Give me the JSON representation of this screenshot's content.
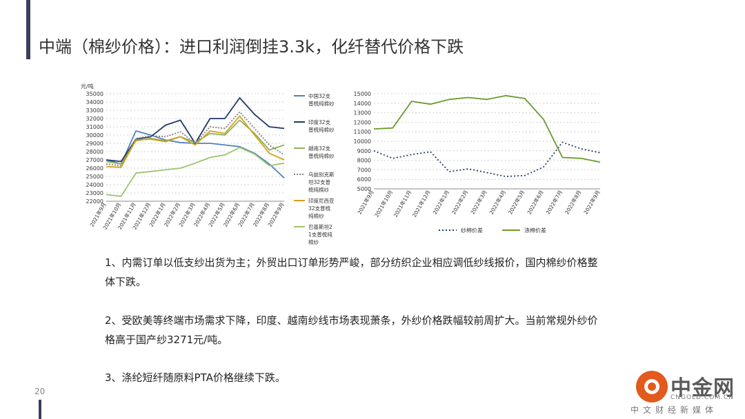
{
  "title": "中端（棉纱价格）：进口利润倒挂3.3k，化纤替代价格下跌",
  "page_number": "20",
  "paragraphs": [
    "1、内需订单以低支纱出货为主；外贸出口订单形势严峻，部分纺织企业相应调低纱线报价，国内棉纱价格整体下跌。",
    "2、受欧美等终端市场需求下降，印度、越南纱线市场表现萧条，外纱价格跌幅较前周扩大。当前常规外纱价格高于国产纱3271元/吨。",
    "3、涤纶短纤随原料PTA价格继续下跌。"
  ],
  "watermark": {
    "brand": "中金网",
    "domain": "CNGOLD.COM.CN",
    "tagline": "中文财经新媒体"
  },
  "chart_data": [
    {
      "type": "line",
      "ylabel": "元/吨",
      "ylim": [
        22000,
        35000
      ],
      "yticks": [
        22000,
        23000,
        24000,
        25000,
        26000,
        27000,
        28000,
        29000,
        30000,
        31000,
        32000,
        33000,
        34000,
        35000
      ],
      "categories": [
        "2021年9月",
        "2021年10月",
        "2021年11月",
        "2021年12月",
        "2022年1月",
        "2022年2月",
        "2022年3月",
        "2022年4月",
        "2022年5月",
        "2022年6月",
        "2022年7月",
        "2022年8月",
        "2022年9月"
      ],
      "grid": true,
      "legend_position": "right",
      "series": [
        {
          "name": "中国32支普梳纯棉纱",
          "color": "#4f81bd",
          "dash": "",
          "values": [
            27000,
            26500,
            30500,
            30000,
            29400,
            29100,
            29000,
            29000,
            28800,
            28600,
            27800,
            26500,
            24800
          ]
        },
        {
          "name": "印度32支普梳纯棉纱",
          "color": "#1f3864",
          "dash": "",
          "values": [
            27000,
            26800,
            29500,
            29800,
            31200,
            31800,
            29000,
            32000,
            32000,
            34500,
            32500,
            31000,
            30800
          ]
        },
        {
          "name": "越南32支普梳纯棉纱",
          "color": "#8db05a",
          "dash": "",
          "values": [
            26800,
            26500,
            29300,
            29600,
            29300,
            29800,
            29100,
            30200,
            30000,
            31800,
            30200,
            28200,
            28800
          ]
        },
        {
          "name": "乌兹别克斯坦32支普梳纯棉纱",
          "color": "#7f7f7f",
          "dash": "2,2",
          "values": [
            26500,
            26300,
            29600,
            29900,
            29800,
            30400,
            29000,
            31000,
            30800,
            32800,
            30800,
            28800,
            27600
          ]
        },
        {
          "name": "印度尼西亚32支普梳纯棉纱",
          "color": "#d4a017",
          "dash": "",
          "values": [
            26200,
            26100,
            29400,
            29500,
            29200,
            29800,
            28800,
            30500,
            30200,
            32300,
            30000,
            27800,
            27000
          ]
        },
        {
          "name": "巴基斯坦21支普梳纯棉纱",
          "color": "#9bc46b",
          "dash": "",
          "values": [
            22800,
            22600,
            25400,
            25600,
            25800,
            26000,
            26600,
            27300,
            27600,
            28500,
            27700,
            26300,
            26600
          ]
        }
      ]
    },
    {
      "type": "line",
      "ylim": [
        5000,
        15000
      ],
      "yticks": [
        5000,
        6000,
        7000,
        8000,
        9000,
        10000,
        11000,
        12000,
        13000,
        14000,
        15000
      ],
      "categories": [
        "2021年9月",
        "2021年10月",
        "2021年11月",
        "2021年12月",
        "2022年1月",
        "2022年2月",
        "2022年3月",
        "2022年4月",
        "2022年5月",
        "2022年6月",
        "2022年7月",
        "2022年8月",
        "2022年9月"
      ],
      "grid": true,
      "legend_position": "bottom",
      "series": [
        {
          "name": "纱棉价差",
          "color": "#1f3864",
          "dash": "2,3",
          "values": [
            9000,
            8200,
            8600,
            8900,
            6800,
            7100,
            6700,
            6300,
            6400,
            7300,
            9900,
            9200,
            8800
          ]
        },
        {
          "name": "涤棉价差",
          "color": "#6a9a2a",
          "dash": "",
          "values": [
            11300,
            11400,
            14200,
            13900,
            14400,
            14600,
            14400,
            14800,
            14500,
            12300,
            8300,
            8200,
            7800
          ]
        }
      ]
    }
  ]
}
